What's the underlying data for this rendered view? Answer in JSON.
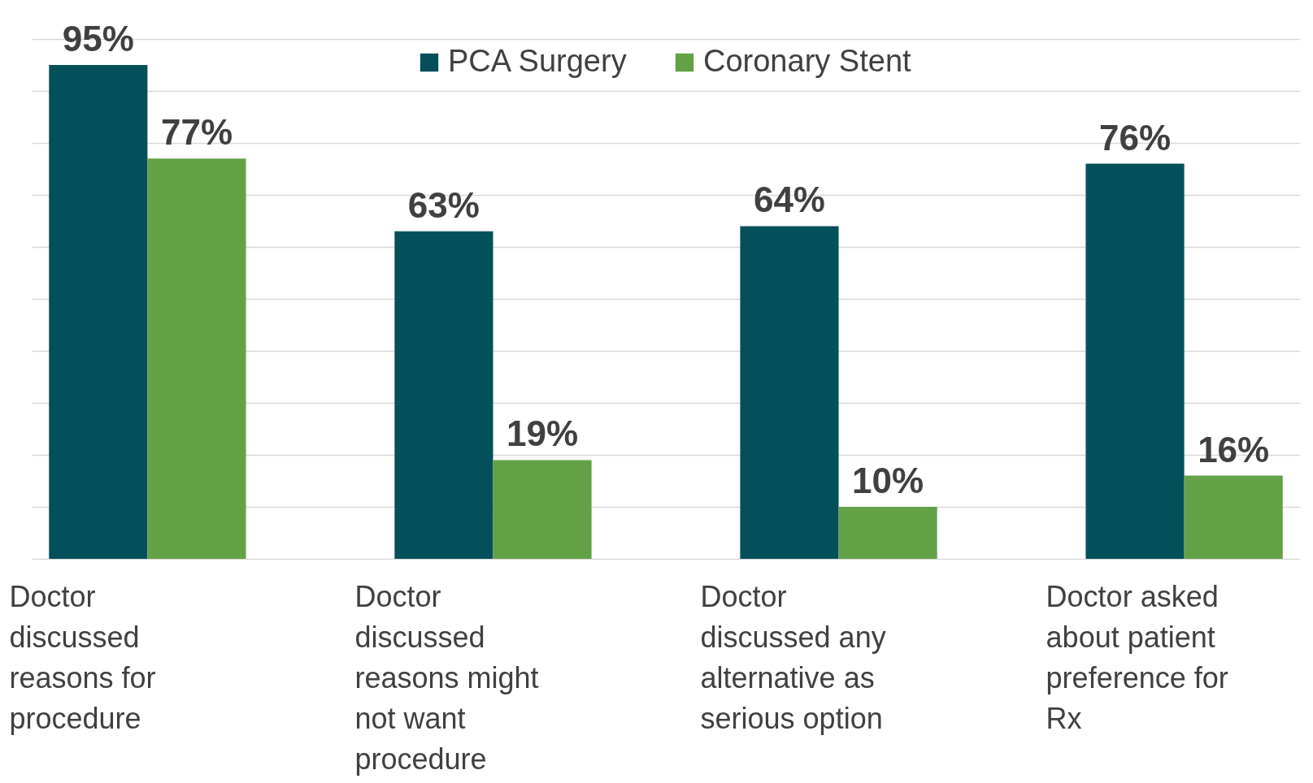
{
  "chart_data": {
    "type": "bar",
    "categories": [
      "Doctor discussed reasons for procedure",
      "Doctor discussed reasons might not want procedure",
      "Doctor discussed any alternative as serious option",
      "Doctor asked about patient preference for Rx"
    ],
    "series": [
      {
        "name": "PCA Surgery",
        "color": "#03505a",
        "values": [
          95,
          63,
          64,
          76
        ],
        "value_labels": [
          "95%",
          "63%",
          "64%",
          "76%"
        ]
      },
      {
        "name": "Coronary Stent",
        "color": "#62a145",
        "values": [
          77,
          19,
          10,
          16
        ],
        "value_labels": [
          "77%",
          "19%",
          "10%",
          "16%"
        ]
      }
    ],
    "tick_labels": "x",
    "grid": "y",
    "legend": "top"
  }
}
